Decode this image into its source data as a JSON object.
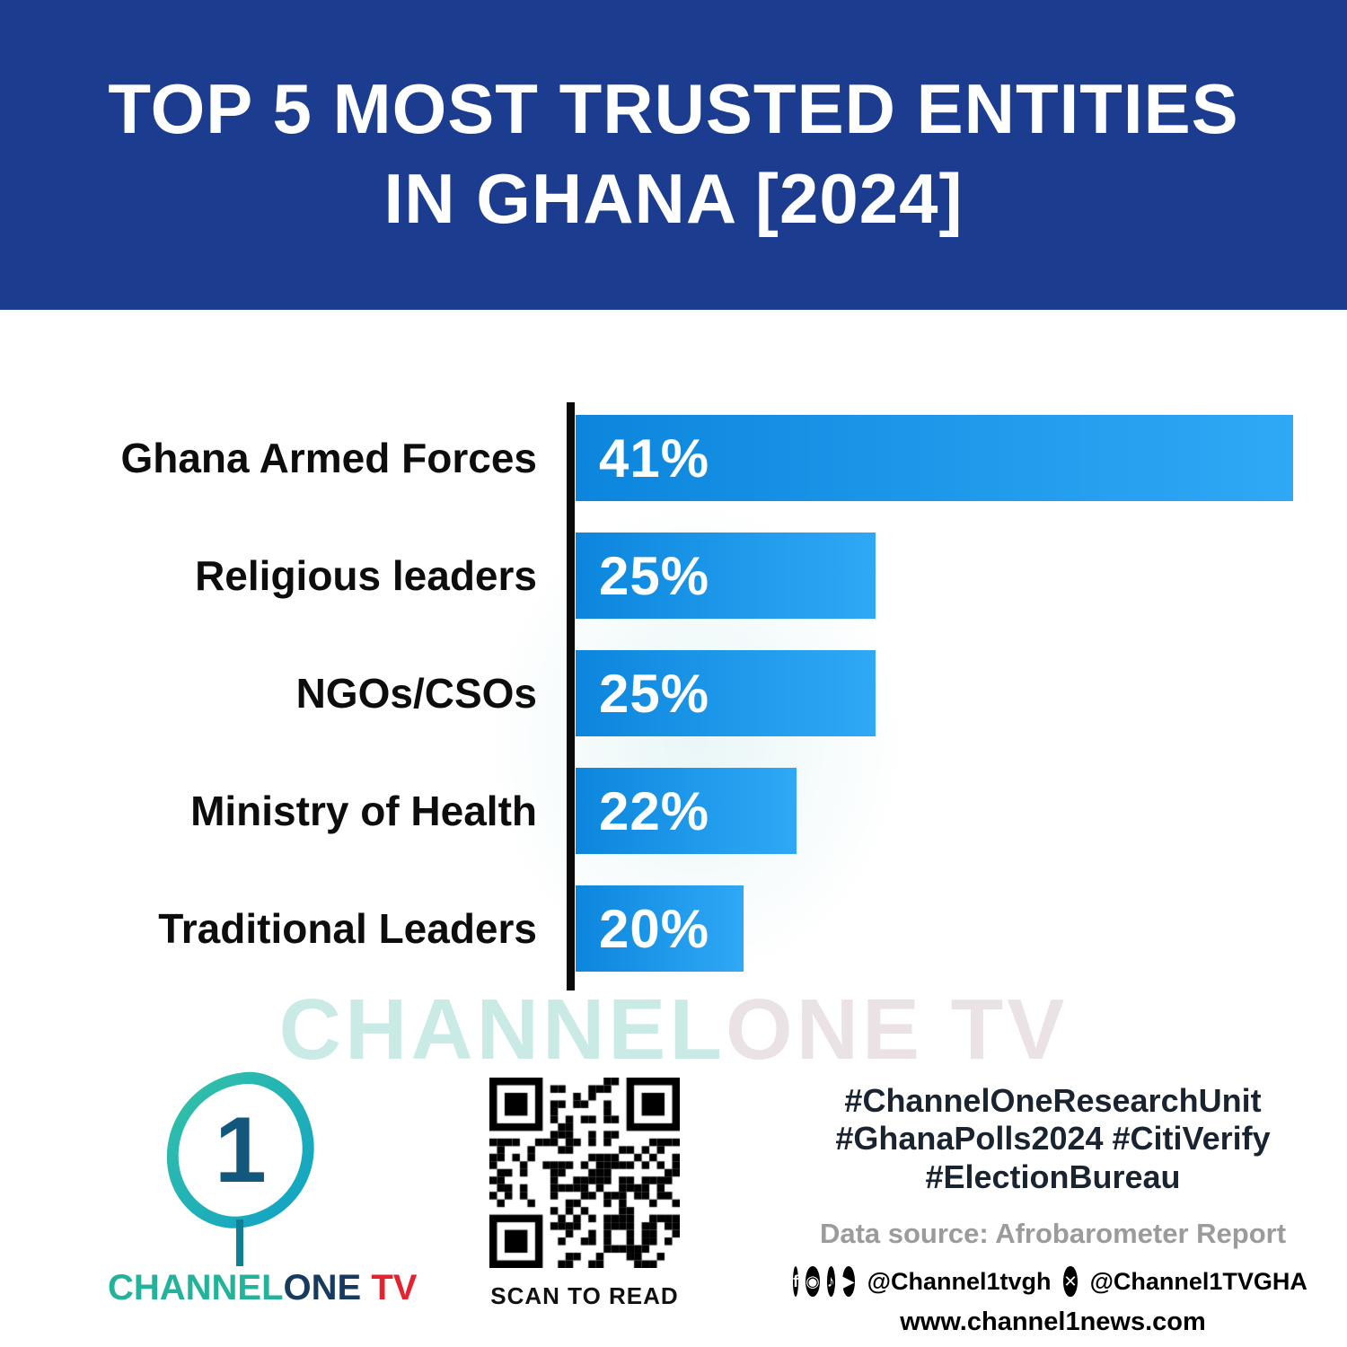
{
  "header": {
    "title_line1": "TOP 5 MOST TRUSTED ENTITIES",
    "title_line2": "IN GHANA [2024]"
  },
  "chart_data": {
    "type": "bar",
    "orientation": "horizontal",
    "title": "Top 5 Most Trusted Entities in Ghana [2024]",
    "categories": [
      "Ghana Armed Forces",
      "Religious leaders",
      "NGOs/CSOs",
      "Ministry of Health",
      "Traditional Leaders"
    ],
    "values": [
      41,
      25,
      25,
      22,
      20
    ],
    "value_labels": [
      "41%",
      "25%",
      "25%",
      "22%",
      "20%"
    ],
    "xlabel": "",
    "ylabel": "",
    "xlim": [
      0,
      41
    ],
    "grid": false,
    "legend": false,
    "bar_color_start": "#0C86DD",
    "bar_color_end": "#2FA9F5"
  },
  "watermark": {
    "part1": "CHANNEL",
    "part2": "ONE TV"
  },
  "footer": {
    "logo": {
      "numeral": "1",
      "brand_channel": "CHANNEL",
      "brand_one": "ONE",
      "brand_tv": " TV"
    },
    "qr_caption": "SCAN TO READ",
    "hashtags_line1": "#ChannelOneResearchUnit",
    "hashtags_line2": "#GhanaPolls2024 #CitiVerify",
    "hashtags_line3": "#ElectionBureau",
    "data_source": "Data source: Afrobarometer Report",
    "social_handle1": "@Channel1tvgh",
    "social_handle2": "@Channel1TVGHA",
    "website": "www.channel1news.com"
  },
  "icons": {
    "facebook": "f",
    "instagram": "◉",
    "tiktok": "♪",
    "youtube": "▶",
    "x": "✕"
  },
  "colors": {
    "header_bg": "#1B3C8F",
    "bar_gradient_start": "#0C86DD",
    "bar_gradient_end": "#2FA9F5",
    "axis": "#0A0A0A",
    "brand_teal": "#25B29A",
    "brand_navy": "#173A5E",
    "brand_red": "#E32330",
    "hashtag_text": "#1A2430",
    "source_gray": "#9B9B9B"
  }
}
